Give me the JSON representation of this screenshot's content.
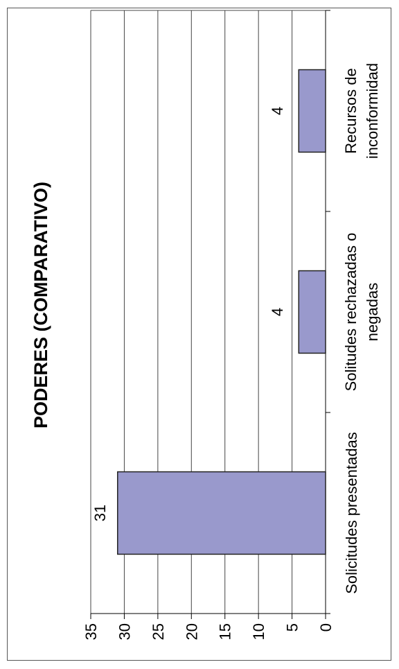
{
  "chart_data": {
    "type": "bar",
    "orientation": "rotated-90-ccw",
    "title": "PODERES (COMPARATIVO)",
    "categories": [
      "Solicitudes presentadas",
      "Solitudes rechazadas o negadas",
      "Recursos de inconformidad"
    ],
    "category_lines": [
      [
        "Solicitudes presentadas"
      ],
      [
        "Solitudes rechazadas o",
        "negadas"
      ],
      [
        "Recursos de",
        "inconformidad"
      ]
    ],
    "values": [
      31,
      4,
      4
    ],
    "data_labels": [
      "31",
      "4",
      "4"
    ],
    "ylim": [
      0,
      35
    ],
    "yticks": [
      "0",
      "5",
      "10",
      "15",
      "20",
      "25",
      "30",
      "35"
    ],
    "grid": true,
    "bar_color": "#9999cc",
    "bar_edge_color": "#222222",
    "grid_color": "#444444"
  }
}
